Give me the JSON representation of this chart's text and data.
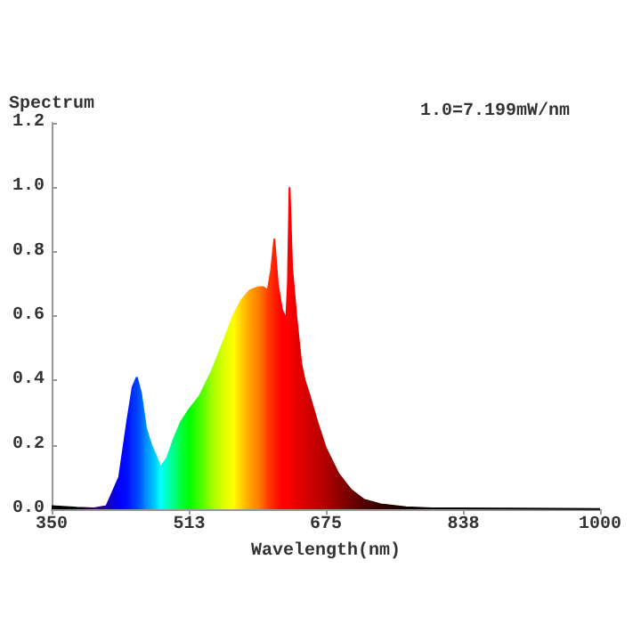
{
  "chart_data": {
    "type": "area",
    "ylabel": "Spectrum",
    "xlabel": "Wavelength(nm)",
    "annotations": [
      "1.0=7.199mW/nm"
    ],
    "x": [
      350,
      380,
      400,
      415,
      430,
      440,
      446,
      451,
      456,
      462,
      468,
      473,
      479,
      487,
      495,
      503,
      513,
      525,
      540,
      555,
      565,
      575,
      585,
      595,
      601,
      606,
      610,
      614,
      618,
      623,
      628,
      630,
      632,
      635,
      640,
      646,
      650,
      655,
      665,
      675,
      690,
      705,
      720,
      740,
      770,
      800,
      900,
      1000
    ],
    "values": [
      0.01,
      0.005,
      0.003,
      0.01,
      0.1,
      0.28,
      0.38,
      0.41,
      0.36,
      0.25,
      0.2,
      0.17,
      0.13,
      0.16,
      0.22,
      0.27,
      0.31,
      0.35,
      0.43,
      0.53,
      0.6,
      0.65,
      0.68,
      0.69,
      0.69,
      0.68,
      0.74,
      0.84,
      0.7,
      0.62,
      0.59,
      0.7,
      1.0,
      0.75,
      0.6,
      0.45,
      0.4,
      0.36,
      0.27,
      0.19,
      0.11,
      0.06,
      0.03,
      0.015,
      0.006,
      0.003,
      0.002,
      0.001
    ],
    "colors": [
      "#000000",
      "#000000",
      "#3a005a",
      "#1a00b0",
      "#0000ff",
      "#0010ff",
      "#0030ff",
      "#0040ff",
      "#0060ff",
      "#0090ff",
      "#00b0ff",
      "#00d0ff",
      "#00ffff",
      "#00ffc0",
      "#00ff80",
      "#00ff40",
      "#00ff00",
      "#40ff00",
      "#a0ff00",
      "#e0ff00",
      "#ffff00",
      "#ffd000",
      "#ffa000",
      "#ff8000",
      "#ff6000",
      "#ff4000",
      "#ff3000",
      "#ff2000",
      "#ff1000",
      "#ff0000",
      "#ff0000",
      "#ff0000",
      "#ff0000",
      "#f00000",
      "#e80000",
      "#e00000",
      "#d80000",
      "#d00000",
      "#c00000",
      "#b00000",
      "#900000",
      "#700000",
      "#500000",
      "#300000",
      "#100000",
      "#000000",
      "#000000",
      "#000000"
    ],
    "xlim": [
      350,
      1000
    ],
    "xticks": [
      350,
      513,
      675,
      838,
      1000
    ],
    "ylim": [
      0,
      1.2
    ],
    "yticks": [
      {
        "value": 0,
        "label": "0.0"
      },
      {
        "value": 0.2,
        "label": "0.2"
      },
      {
        "value": 0.4,
        "label": "0.4"
      },
      {
        "value": 0.6,
        "label": "0.6"
      },
      {
        "value": 0.8,
        "label": "0.8"
      },
      {
        "value": 1.0,
        "label": "1.0"
      },
      {
        "value": 1.2,
        "label": "1.2"
      }
    ],
    "grid": false,
    "marker": "none"
  }
}
